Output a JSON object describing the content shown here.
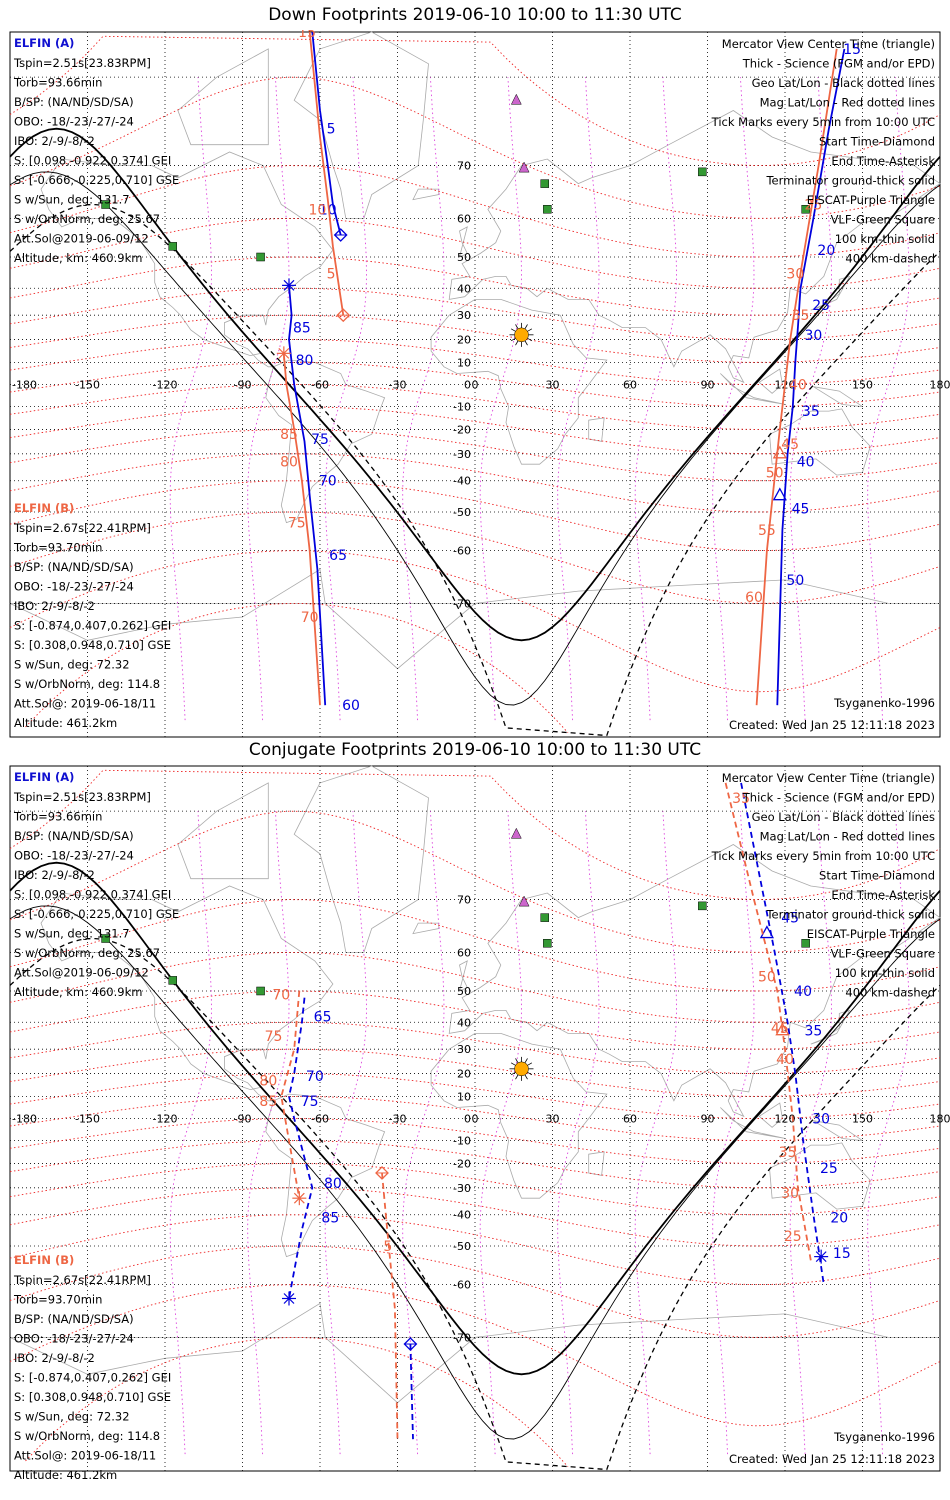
{
  "colors": {
    "blue": "#0000dd",
    "orange": "#ee6644",
    "magLine": "#ee1111",
    "geo": "#000000",
    "gridMag": "#ee2222",
    "gridGeoMag": "#dd44dd",
    "eiscat": "#cc66cc",
    "vlf": "#339933",
    "land": "#aaaaaa"
  },
  "lon_ticks": [
    "-180",
    "-150",
    "-120",
    "-90",
    "-60",
    "-30",
    "0",
    "30",
    "60",
    "90",
    "120",
    "150",
    "180"
  ],
  "lat_ticks": [
    "70",
    "60",
    "50",
    "40",
    "30",
    "20",
    "10",
    "0",
    "-10",
    "-20",
    "-30",
    "-40",
    "-50",
    "-60",
    "-70"
  ],
  "legend": [
    {
      "text": "Mercator View Center Time (triangle)",
      "color": "#000000"
    },
    {
      "text": "Thick - Science (FGM and/or EPD)",
      "color": "#000000"
    },
    {
      "text": "Geo Lat/Lon - Black dotted lines",
      "color": "#000000"
    },
    {
      "text": "Mag Lat/Lon - Red dotted lines",
      "color": "#ee1111"
    },
    {
      "text": "Tick Marks every 5min from 10:00 UTC",
      "color": "#000000"
    },
    {
      "text": "Start Time-Diamond",
      "color": "#000000"
    },
    {
      "text": "End Time-Asterisk",
      "color": "#000000"
    },
    {
      "text": "Terminator ground-thick solid",
      "color": "#000000"
    },
    {
      "text": "EISCAT-Purple Triangle",
      "color": "#cc66cc"
    },
    {
      "text": "VLF-Green Square",
      "color": "#339933"
    },
    {
      "text": "100 km-thin solid",
      "color": "#000000"
    },
    {
      "text": "400 km-dashed",
      "color": "#000000"
    }
  ],
  "sat_a": {
    "title": "ELFIN (A)",
    "lines": [
      "Tspin=2.51s[23.83RPM]",
      "Torb=93.66min",
      "B/SP: (NA/ND/SD/SA)",
      "OBO: -18/-23/-27/-24",
      "IBO: 2/-9/-8/-2",
      "S: [0.098,-0.922,0.374] GEI",
      "S: [-0.666,-0.225,0.710] GSE",
      "S w/Sun, deg: 131.7",
      "S w/OrbNorm, deg: 25.67",
      "Att.Sol@2019-06-09/12",
      "Altitude, km: 460.9km"
    ]
  },
  "sat_b": {
    "title": "ELFIN (B)",
    "lines": [
      "Tspin=2.67s[22.41RPM]",
      "Torb=93.70min",
      "B/SP: (NA/ND/SD/SA)",
      "OBO: -18/-23/-27/-24",
      "IBO: 2/-9/-8/-2",
      "S: [-0.874,0.407,0.262] GEI",
      "S: [0.308,0.948,0.710] GSE",
      "S w/Sun, deg: 72.32",
      "S w/OrbNorm, deg: 114.8",
      "Att.Sol@: 2019-06-18/11",
      "Altitude: 461.2km"
    ]
  },
  "sites": {
    "eiscat": [
      {
        "lon": 16,
        "lat": 78
      },
      {
        "lon": 19,
        "lat": 69.6
      }
    ],
    "vlf": [
      {
        "lon": 27,
        "lat": 67
      },
      {
        "lon": 28,
        "lat": 62
      },
      {
        "lon": 88,
        "lat": 69
      },
      {
        "lon": 128,
        "lat": 62
      },
      {
        "lon": -143,
        "lat": 63
      },
      {
        "lon": -117,
        "lat": 53
      },
      {
        "lon": -83,
        "lat": 50
      }
    ],
    "sun": {
      "lon": 18,
      "lat": 22
    }
  },
  "panels": [
    {
      "title": "Down Footprints 2019-06-10 10:00 to 11:30 UTC",
      "footer_model": "Tsyganenko-1996",
      "footer_created": "Created: Wed Jan 25 12:11:18 2023",
      "tracks": [
        {
          "sat": "A",
          "color": "#0000dd",
          "dash": false,
          "points": [
            [
              -63,
              83
            ],
            [
              -60,
              77
            ],
            [
              -57,
              70
            ],
            [
              -55,
              63
            ],
            [
              -52,
              56
            ]
          ],
          "start": [
            -52,
            56
          ],
          "end": null,
          "labels": [
            {
              "t": "5",
              "lon": -59,
              "lat": 75
            },
            {
              "t": "10",
              "lon": -62,
              "lat": 62
            }
          ]
        },
        {
          "sat": "B",
          "color": "#ee6644",
          "dash": false,
          "points": [
            [
              -64,
              83
            ],
            [
              -60,
              74
            ],
            [
              -57,
              64
            ],
            [
              -55,
              53
            ],
            [
              -51,
              30
            ]
          ],
          "start": [
            -51,
            30
          ],
          "end": null,
          "labels": [
            {
              "t": "15",
              "lon": -70,
              "lat": 83
            },
            {
              "t": "10",
              "lon": -66,
              "lat": 62
            },
            {
              "t": "5",
              "lon": -59,
              "lat": 45
            }
          ]
        },
        {
          "sat": "A",
          "color": "#0000dd",
          "dash": false,
          "points": [
            [
              -72,
              41
            ],
            [
              -71,
              30
            ],
            [
              -72,
              20
            ],
            [
              -70,
              0
            ],
            [
              -66,
              -25
            ],
            [
              -64,
              -45
            ],
            [
              -61,
              -64
            ],
            [
              -58,
              -81
            ]
          ],
          "start": null,
          "end": [
            -72,
            41
          ],
          "labels": [
            {
              "t": "85",
              "lon": -72,
              "lat": 25
            },
            {
              "t": "80",
              "lon": -71,
              "lat": 11
            },
            {
              "t": "75",
              "lon": -65,
              "lat": -24
            },
            {
              "t": "70",
              "lon": -62,
              "lat": -40
            },
            {
              "t": "65",
              "lon": -58,
              "lat": -61
            },
            {
              "t": "60",
              "lon": -53,
              "lat": -81
            }
          ]
        },
        {
          "sat": "B",
          "color": "#ee6644",
          "dash": false,
          "points": [
            [
              -74,
              14
            ],
            [
              -73,
              0
            ],
            [
              -70,
              -20
            ],
            [
              -67,
              -40
            ],
            [
              -64,
              -60
            ],
            [
              -60,
              -81
            ]
          ],
          "start": null,
          "end": [
            -74,
            14
          ],
          "labels": [
            {
              "t": "85",
              "lon": -77,
              "lat": -22
            },
            {
              "t": "80",
              "lon": -77,
              "lat": -33
            },
            {
              "t": "75",
              "lon": -74,
              "lat": -53
            },
            {
              "t": "70",
              "lon": -69,
              "lat": -72
            }
          ]
        },
        {
          "sat": "A",
          "color": "#0000dd",
          "dash": false,
          "points": [
            [
              143,
              82
            ],
            [
              137,
              75
            ],
            [
              131,
              60
            ],
            [
              126,
              40
            ],
            [
              125,
              25
            ],
            [
              124,
              10
            ],
            [
              123,
              -10
            ],
            [
              121,
              -30
            ],
            [
              119,
              -55
            ],
            [
              117,
              -81
            ]
          ],
          "start": null,
          "end": null,
          "tri": [
            118,
            -45
          ],
          "labels": [
            {
              "t": "15",
              "lon": 141,
              "lat": 82
            },
            {
              "t": "20",
              "lon": 131,
              "lat": 52
            },
            {
              "t": "25",
              "lon": 129,
              "lat": 34
            },
            {
              "t": "30",
              "lon": 126,
              "lat": 22
            },
            {
              "t": "35",
              "lon": 125,
              "lat": -12
            },
            {
              "t": "40",
              "lon": 123,
              "lat": -33
            },
            {
              "t": "45",
              "lon": 121,
              "lat": -49
            },
            {
              "t": "50",
              "lon": 119,
              "lat": -66
            }
          ]
        },
        {
          "sat": "B",
          "color": "#ee6644",
          "dash": false,
          "points": [
            [
              140,
              82
            ],
            [
              133,
              70
            ],
            [
              126,
              45
            ],
            [
              122,
              20
            ],
            [
              118,
              -20
            ],
            [
              113,
              -60
            ],
            [
              109,
              -81
            ]
          ],
          "start": null,
          "end": null,
          "tri": [
            118,
            -30
          ],
          "labels": [
            {
              "t": "25",
              "lon": 126,
              "lat": 63
            },
            {
              "t": "30",
              "lon": 119,
              "lat": 45
            },
            {
              "t": "35",
              "lon": 121,
              "lat": 30
            },
            {
              "t": "40",
              "lon": 120,
              "lat": 0
            },
            {
              "t": "45",
              "lon": 117,
              "lat": -26
            },
            {
              "t": "50",
              "lon": 111,
              "lat": -37
            },
            {
              "t": "55",
              "lon": 108,
              "lat": -55
            },
            {
              "t": "60",
              "lon": 103,
              "lat": -69
            }
          ]
        }
      ],
      "ticks_shown": true
    },
    {
      "title": "Conjugate Footprints 2019-06-10 10:00 to 11:30 UTC",
      "footer_model": "Tsyganenko-1996",
      "footer_created": "Created: Wed Jan 25 12:11:18 2023",
      "tracks": [
        {
          "sat": "A",
          "color": "#0000dd",
          "dash": true,
          "points": [
            [
              -66,
              48
            ],
            [
              -67,
              40
            ],
            [
              -70,
              20
            ],
            [
              -72,
              10
            ],
            [
              -70,
              0
            ],
            [
              -63,
              -30
            ],
            [
              -67,
              -45
            ],
            [
              -72,
              -63
            ]
          ],
          "start": null,
          "end": [
            -72,
            -63
          ],
          "labels": [
            {
              "t": "65",
              "lon": -64,
              "lat": 42
            },
            {
              "t": "70",
              "lon": -67,
              "lat": 19
            },
            {
              "t": "75",
              "lon": -69,
              "lat": 8
            },
            {
              "t": "80",
              "lon": -60,
              "lat": -28
            },
            {
              "t": "85",
              "lon": -61,
              "lat": -41
            }
          ]
        },
        {
          "sat": "B",
          "color": "#ee6644",
          "dash": true,
          "points": [
            [
              -68,
              50
            ],
            [
              -70,
              30
            ],
            [
              -75,
              10
            ],
            [
              -72,
              -10
            ],
            [
              -68,
              -34
            ]
          ],
          "start": null,
          "end": [
            -68,
            -34
          ],
          "labels": [
            {
              "t": "70",
              "lon": -80,
              "lat": 49
            },
            {
              "t": "75",
              "lon": -83,
              "lat": 35
            },
            {
              "t": "80",
              "lon": -85,
              "lat": 17
            },
            {
              "t": "85",
              "lon": -85,
              "lat": 8
            }
          ]
        },
        {
          "sat": "B",
          "color": "#ee6644",
          "dash": true,
          "points": [
            [
              -36,
              -24
            ],
            [
              -34,
              -45
            ],
            [
              -31,
              -65
            ],
            [
              -30,
              -81
            ]
          ],
          "start": [
            -36,
            -24
          ],
          "end": null,
          "labels": [
            {
              "t": "5",
              "lon": -37,
              "lat": -50
            }
          ]
        },
        {
          "sat": "A",
          "color": "#0000dd",
          "dash": true,
          "points": [
            [
              -25,
              -71
            ],
            [
              -24,
              -81
            ]
          ],
          "start": [
            -25,
            -71
          ],
          "end": null,
          "labels": []
        },
        {
          "sat": "A",
          "color": "#0000dd",
          "dash": true,
          "points": [
            [
              103,
              82
            ],
            [
              112,
              70
            ],
            [
              116,
              60
            ],
            [
              121,
              40
            ],
            [
              124,
              20
            ],
            [
              127,
              -10
            ],
            [
              131,
              -40
            ],
            [
              135,
              -60
            ]
          ],
          "start": null,
          "end": [
            134,
            -53
          ],
          "tri": [
            113,
            64
          ],
          "labels": [
            {
              "t": "45",
              "lon": 117,
              "lat": 67
            },
            {
              "t": "40",
              "lon": 122,
              "lat": 50
            },
            {
              "t": "35",
              "lon": 126,
              "lat": 37
            },
            {
              "t": "30",
              "lon": 129,
              "lat": 0
            },
            {
              "t": "25",
              "lon": 132,
              "lat": -22
            },
            {
              "t": "20",
              "lon": 136,
              "lat": -41
            },
            {
              "t": "15",
              "lon": 137,
              "lat": -52
            }
          ]
        },
        {
          "sat": "B",
          "color": "#ee6644",
          "dash": true,
          "points": [
            [
              97,
              82
            ],
            [
              108,
              70
            ],
            [
              117,
              50
            ],
            [
              120,
              30
            ],
            [
              123,
              0
            ],
            [
              125,
              -30
            ],
            [
              130,
              -54
            ]
          ],
          "start": null,
          "end": null,
          "tri": [
            119,
            37
          ],
          "labels": [
            {
              "t": "35",
              "lon": 98,
              "lat": 81
            },
            {
              "t": "50",
              "lon": 108,
              "lat": 54
            },
            {
              "t": "45",
              "lon": 113,
              "lat": 38
            },
            {
              "t": "40",
              "lon": 115,
              "lat": 26
            },
            {
              "t": "35",
              "lon": 116,
              "lat": -15
            },
            {
              "t": "30",
              "lon": 117,
              "lat": -32
            },
            {
              "t": "25",
              "lon": 118,
              "lat": -47
            }
          ]
        }
      ],
      "ticks_shown": true
    }
  ]
}
